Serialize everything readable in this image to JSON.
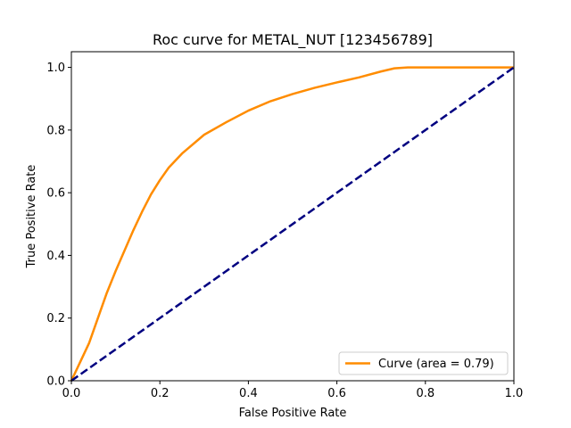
{
  "chart_data": {
    "type": "line",
    "title": "Roc curve for METAL_NUT [123456789]",
    "xlabel": "False Positive Rate",
    "ylabel": "True Positive Rate",
    "xlim": [
      0,
      1
    ],
    "ylim": [
      0,
      1.05
    ],
    "xticks": [
      0,
      0.2,
      0.4,
      0.6,
      0.8,
      1
    ],
    "xtick_labels": [
      "0.0",
      "0.2",
      "0.4",
      "0.6",
      "0.8",
      "1.0"
    ],
    "yticks": [
      0,
      0.2,
      0.4,
      0.6,
      0.8,
      1
    ],
    "ytick_labels": [
      "0.0",
      "0.2",
      "0.4",
      "0.6",
      "0.8",
      "1.0"
    ],
    "grid": false,
    "legend_position": "lower-right",
    "series": [
      {
        "name": "Curve (area = 0.79)",
        "color": "#ff8c00",
        "style": "solid",
        "x": [
          0,
          0.02,
          0.04,
          0.06,
          0.08,
          0.1,
          0.12,
          0.14,
          0.16,
          0.18,
          0.2,
          0.22,
          0.25,
          0.3,
          0.35,
          0.4,
          0.45,
          0.5,
          0.55,
          0.6,
          0.65,
          0.7,
          0.73,
          0.76,
          0.8,
          0.9,
          1.0
        ],
        "y": [
          0,
          0.06,
          0.12,
          0.2,
          0.28,
          0.35,
          0.415,
          0.48,
          0.54,
          0.595,
          0.64,
          0.68,
          0.725,
          0.785,
          0.825,
          0.862,
          0.892,
          0.915,
          0.935,
          0.952,
          0.968,
          0.987,
          0.997,
          1.0,
          1.0,
          1.0,
          1.0
        ]
      },
      {
        "color": "#000080",
        "style": "dashed",
        "x": [
          0,
          1
        ],
        "y": [
          0,
          1
        ]
      }
    ]
  }
}
